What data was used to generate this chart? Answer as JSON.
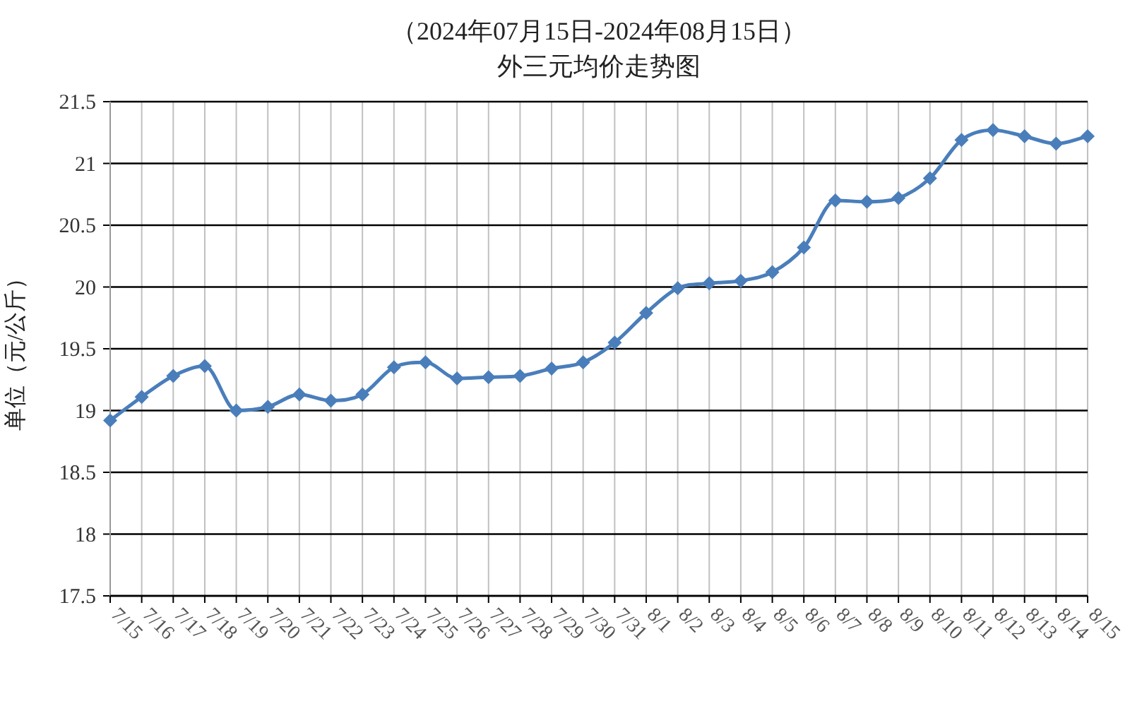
{
  "chart_data": {
    "type": "line",
    "title": "（2024年07月15日-2024年08月15日）",
    "subtitle": "外三元均价走势图",
    "ylabel": "单位（元/公斤）",
    "categories": [
      "7/15",
      "7/16",
      "7/17",
      "7/18",
      "7/19",
      "7/20",
      "7/21",
      "7/22",
      "7/23",
      "7/24",
      "7/25",
      "7/26",
      "7/27",
      "7/28",
      "7/29",
      "7/30",
      "7/31",
      "8/1",
      "8/2",
      "8/3",
      "8/4",
      "8/5",
      "8/6",
      "8/7",
      "8/8",
      "8/9",
      "8/10",
      "8/11",
      "8/12",
      "8/13",
      "8/14",
      "8/15"
    ],
    "series": [
      {
        "color": "#4a7ebb",
        "values": [
          18.92,
          19.11,
          19.28,
          19.36,
          19.0,
          19.03,
          19.13,
          19.08,
          19.13,
          19.35,
          19.39,
          19.26,
          19.27,
          19.28,
          19.34,
          19.39,
          19.55,
          19.79,
          19.99,
          20.03,
          20.05,
          20.12,
          20.32,
          20.7,
          20.69,
          20.72,
          20.88,
          21.19,
          21.27,
          21.22,
          21.16,
          21.22
        ]
      }
    ],
    "ylim": [
      17.5,
      21.5
    ],
    "yticks": [
      17.5,
      18,
      18.5,
      19,
      19.5,
      20,
      20.5,
      21,
      21.5
    ],
    "grid": true,
    "marker": "diamond",
    "line_style": "solid"
  }
}
